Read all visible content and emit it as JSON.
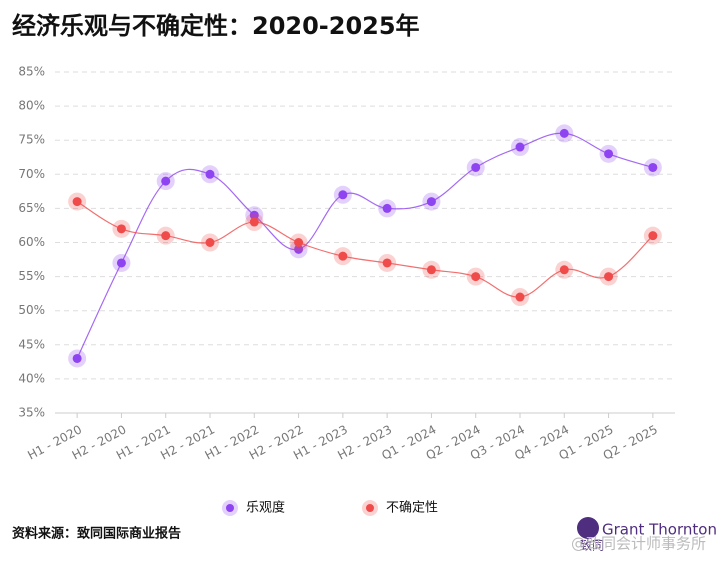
{
  "chart_data": {
    "type": "line",
    "title": "经济乐观与不确定性：2020-2025年",
    "categories": [
      "H1 - 2020",
      "H2 - 2020",
      "H1 - 2021",
      "H2 - 2021",
      "H1 - 2022",
      "H2 - 2022",
      "H1 - 2023",
      "H2 - 2023",
      "Q1 - 2024",
      "Q2 - 2024",
      "Q3 - 2024",
      "Q4 - 2024",
      "Q1 - 2025",
      "Q2 - 2025"
    ],
    "series": [
      {
        "name": "乐观度",
        "color": "#8e44f0",
        "values": [
          43,
          57,
          69,
          70,
          64,
          59,
          67,
          65,
          66,
          71,
          74,
          76,
          73,
          71
        ]
      },
      {
        "name": "不确定性",
        "color": "#f04b4b",
        "values": [
          66,
          62,
          61,
          60,
          63,
          60,
          58,
          57,
          56,
          55,
          52,
          56,
          55,
          61
        ]
      }
    ],
    "ylim": [
      35,
      85
    ],
    "yticks": [
      {
        "value": 35,
        "label": "35%"
      },
      {
        "value": 40,
        "label": "40%"
      },
      {
        "value": 45,
        "label": "45%"
      },
      {
        "value": 50,
        "label": "50%"
      },
      {
        "value": 55,
        "label": "55%"
      },
      {
        "value": 60,
        "label": "60%"
      },
      {
        "value": 65,
        "label": "65%"
      },
      {
        "value": 70,
        "label": "70%"
      },
      {
        "value": 75,
        "label": "75%"
      },
      {
        "value": 80,
        "label": "80%"
      },
      {
        "value": 85,
        "label": "85%"
      }
    ],
    "grid": true,
    "legend": "bottom",
    "source": "资料来源：致同国际商业报告",
    "logo": "Grant Thornton",
    "logo_sub": "致同",
    "watermark": "@致同会计师事务所"
  }
}
